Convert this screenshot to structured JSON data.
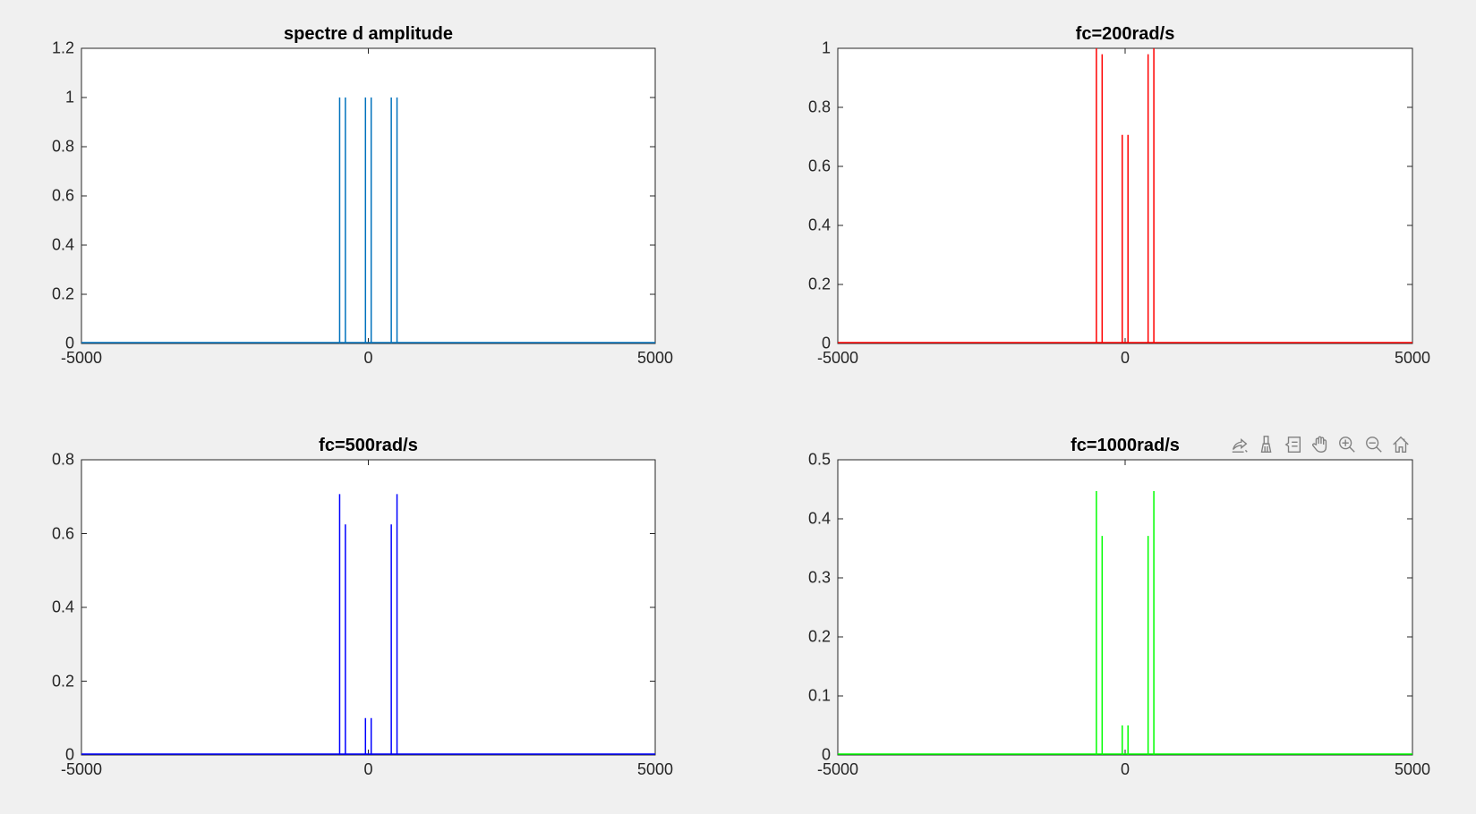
{
  "figure": {
    "background": "#f0f0f0"
  },
  "toolbar": {
    "items": [
      {
        "icon": "export-icon",
        "label": "Export"
      },
      {
        "icon": "brush-icon",
        "label": "Brush"
      },
      {
        "icon": "data-tips-icon",
        "label": "Data Tips"
      },
      {
        "icon": "pan-icon",
        "label": "Pan"
      },
      {
        "icon": "zoom-in-icon",
        "label": "Zoom In"
      },
      {
        "icon": "zoom-out-icon",
        "label": "Zoom Out"
      },
      {
        "icon": "home-icon",
        "label": "Restore View"
      }
    ]
  },
  "chart_data": [
    {
      "type": "line",
      "title": "spectre d amplitude",
      "xlabel": "",
      "ylabel": "",
      "color": "#0072bd",
      "xlim": [
        -5000,
        5000
      ],
      "ylim": [
        0,
        1.2
      ],
      "xticks": [
        "-5000",
        "0",
        "5000"
      ],
      "xtick_values": [
        -5000,
        0,
        5000
      ],
      "yticks": [
        "0",
        "0.2",
        "0.4",
        "0.6",
        "0.8",
        "1",
        "1.2"
      ],
      "ytick_values": [
        0,
        0.2,
        0.4,
        0.6,
        0.8,
        1,
        1.2
      ],
      "grid": false,
      "peaks": {
        "x": [
          -500,
          -400,
          -50,
          50,
          400,
          500
        ],
        "y": [
          1,
          1,
          1,
          1,
          1,
          1
        ]
      }
    },
    {
      "type": "line",
      "title": "fc=200rad/s",
      "xlabel": "",
      "ylabel": "",
      "color": "#ff0000",
      "xlim": [
        -5000,
        5000
      ],
      "ylim": [
        0,
        1
      ],
      "xticks": [
        "-5000",
        "0",
        "5000"
      ],
      "xtick_values": [
        -5000,
        0,
        5000
      ],
      "yticks": [
        "0",
        "0.2",
        "0.4",
        "0.6",
        "0.8",
        "1"
      ],
      "ytick_values": [
        0,
        0.2,
        0.4,
        0.6,
        0.8,
        1
      ],
      "grid": false,
      "peaks": {
        "x": [
          -500,
          -400,
          -50,
          50,
          400,
          500
        ],
        "y": [
          1.0,
          0.98,
          0.707,
          0.707,
          0.98,
          1.0
        ]
      }
    },
    {
      "type": "line",
      "title": "fc=500rad/s",
      "xlabel": "",
      "ylabel": "",
      "color": "#0000ff",
      "xlim": [
        -5000,
        5000
      ],
      "ylim": [
        0,
        0.8
      ],
      "xticks": [
        "-5000",
        "0",
        "5000"
      ],
      "xtick_values": [
        -5000,
        0,
        5000
      ],
      "yticks": [
        "0",
        "0.2",
        "0.4",
        "0.6",
        "0.8"
      ],
      "ytick_values": [
        0,
        0.2,
        0.4,
        0.6,
        0.8
      ],
      "grid": false,
      "peaks": {
        "x": [
          -500,
          -400,
          -50,
          50,
          400,
          500
        ],
        "y": [
          0.707,
          0.625,
          0.1,
          0.1,
          0.625,
          0.707
        ]
      }
    },
    {
      "type": "line",
      "title": "fc=1000rad/s",
      "xlabel": "",
      "ylabel": "",
      "color": "#00ff00",
      "xlim": [
        -5000,
        5000
      ],
      "ylim": [
        0,
        0.5
      ],
      "xticks": [
        "-5000",
        "0",
        "5000"
      ],
      "xtick_values": [
        -5000,
        0,
        5000
      ],
      "yticks": [
        "0",
        "0.1",
        "0.2",
        "0.3",
        "0.4",
        "0.5"
      ],
      "ytick_values": [
        0,
        0.1,
        0.2,
        0.3,
        0.4,
        0.5
      ],
      "grid": false,
      "peaks": {
        "x": [
          -500,
          -400,
          -50,
          50,
          400,
          500
        ],
        "y": [
          0.447,
          0.371,
          0.05,
          0.05,
          0.371,
          0.447
        ]
      }
    }
  ]
}
